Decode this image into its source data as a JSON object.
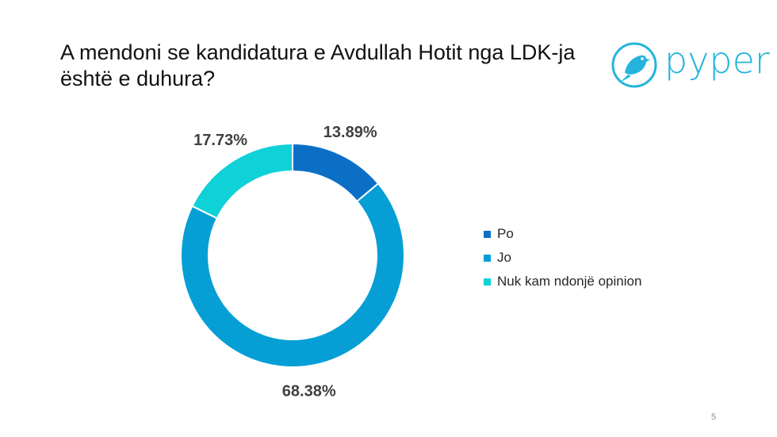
{
  "slide": {
    "title": "A mendoni se kandidatura e Avdullah Hotit nga LDK-ja është e duhura?",
    "page_number": "5"
  },
  "logo": {
    "text": "pyper",
    "color": "#24b4dc",
    "icon": "bird-icon"
  },
  "chart_data": {
    "type": "pie",
    "title": "A mendoni se kandidatura e Avdullah Hotit nga LDK-ja është e duhura?",
    "donut": true,
    "categories": [
      "Po",
      "Jo",
      "Nuk kam ndonjë opinion"
    ],
    "values": [
      13.89,
      68.38,
      17.73
    ],
    "data_labels": [
      "13.89%",
      "68.38%",
      "17.73%"
    ],
    "colors": [
      "#0c6fc6",
      "#059fd6",
      "#0fd1d8"
    ],
    "legend_position": "right"
  }
}
